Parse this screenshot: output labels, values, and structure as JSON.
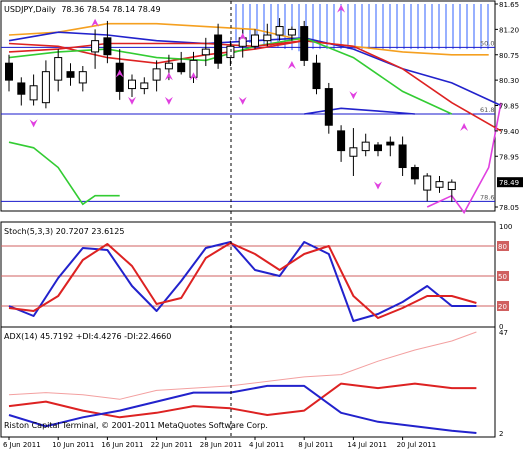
{
  "window": {
    "title": "USDJPY,Daily",
    "ohlc": "78.36 78.54 78.14 78.49",
    "copyright": "Riston Capital Terminal, © 2001-2011 MetaQuotes Software Corp."
  },
  "colors": {
    "background": "#ffffff",
    "panel_border": "#000000",
    "candle_up": "#ffffff",
    "candle_down": "#000000",
    "cloud_hatch": "#3060ff",
    "fibo": "#1a1acc",
    "arrows": "#e040e0",
    "separator": "#000000"
  },
  "chart_data": [
    {
      "type": "candlestick",
      "title": "USDJPY,Daily",
      "y_axis": {
        "min": 78.05,
        "max": 81.65,
        "ticks": [
          81.65,
          81.2,
          80.75,
          80.3,
          79.85,
          79.4,
          78.95,
          78.49,
          78.05
        ],
        "current_price": 78.49
      },
      "x_axis": {
        "tick_labels": [
          "6 Jun 2011",
          "10 Jun 2011",
          "16 Jun 2011",
          "22 Jun 2011",
          "28 Jun 2011",
          "4 Jul 2011",
          "8 Jul 2011",
          "14 Jul 2011",
          "20 Jul 2011"
        ],
        "tick_index": [
          0,
          4,
          8,
          12,
          16,
          20,
          24,
          28,
          32
        ]
      },
      "fibo_levels": [
        {
          "label": "50.0",
          "value": 80.88
        },
        {
          "label": "61.8",
          "value": 79.7
        },
        {
          "label": "78.6",
          "value": 78.15
        }
      ],
      "candles": [
        {
          "o": 80.6,
          "h": 80.75,
          "l": 80.1,
          "c": 80.3
        },
        {
          "o": 80.25,
          "h": 80.35,
          "l": 79.85,
          "c": 80.05
        },
        {
          "o": 79.95,
          "h": 80.4,
          "l": 79.85,
          "c": 80.2
        },
        {
          "o": 79.9,
          "h": 80.65,
          "l": 79.8,
          "c": 80.45
        },
        {
          "o": 80.3,
          "h": 80.85,
          "l": 80.1,
          "c": 80.7
        },
        {
          "o": 80.45,
          "h": 80.6,
          "l": 80.2,
          "c": 80.35
        },
        {
          "o": 80.25,
          "h": 80.55,
          "l": 80.1,
          "c": 80.45
        },
        {
          "o": 80.8,
          "h": 81.2,
          "l": 80.5,
          "c": 81.0
        },
        {
          "o": 81.05,
          "h": 81.35,
          "l": 80.6,
          "c": 80.75
        },
        {
          "o": 80.6,
          "h": 80.85,
          "l": 79.95,
          "c": 80.1
        },
        {
          "o": 80.15,
          "h": 80.4,
          "l": 80.0,
          "c": 80.3
        },
        {
          "o": 80.15,
          "h": 80.35,
          "l": 80.05,
          "c": 80.25
        },
        {
          "o": 80.3,
          "h": 80.65,
          "l": 80.1,
          "c": 80.5
        },
        {
          "o": 80.5,
          "h": 80.75,
          "l": 80.3,
          "c": 80.6
        },
        {
          "o": 80.6,
          "h": 80.8,
          "l": 80.4,
          "c": 80.45
        },
        {
          "o": 80.35,
          "h": 80.8,
          "l": 80.25,
          "c": 80.65
        },
        {
          "o": 80.75,
          "h": 81.05,
          "l": 80.55,
          "c": 80.85
        },
        {
          "o": 81.1,
          "h": 81.3,
          "l": 80.5,
          "c": 80.6
        },
        {
          "o": 80.7,
          "h": 81.0,
          "l": 80.55,
          "c": 80.9
        },
        {
          "o": 80.9,
          "h": 81.2,
          "l": 80.7,
          "c": 81.05
        },
        {
          "o": 80.9,
          "h": 81.2,
          "l": 80.85,
          "c": 81.1
        },
        {
          "o": 81.0,
          "h": 81.3,
          "l": 80.9,
          "c": 81.1
        },
        {
          "o": 81.1,
          "h": 81.4,
          "l": 81.0,
          "c": 81.25
        },
        {
          "o": 81.1,
          "h": 81.25,
          "l": 81.0,
          "c": 81.2
        },
        {
          "o": 81.25,
          "h": 81.35,
          "l": 80.55,
          "c": 80.65
        },
        {
          "o": 80.6,
          "h": 80.75,
          "l": 80.05,
          "c": 80.15
        },
        {
          "o": 80.15,
          "h": 80.25,
          "l": 79.35,
          "c": 79.5
        },
        {
          "o": 79.4,
          "h": 79.5,
          "l": 78.85,
          "c": 79.05
        },
        {
          "o": 78.95,
          "h": 79.45,
          "l": 78.6,
          "c": 79.1
        },
        {
          "o": 79.05,
          "h": 79.35,
          "l": 78.95,
          "c": 79.2
        },
        {
          "o": 79.15,
          "h": 79.2,
          "l": 78.95,
          "c": 79.05
        },
        {
          "o": 79.2,
          "h": 79.3,
          "l": 78.95,
          "c": 79.15
        },
        {
          "o": 79.15,
          "h": 79.3,
          "l": 78.6,
          "c": 78.75
        },
        {
          "o": 78.75,
          "h": 78.8,
          "l": 78.45,
          "c": 78.55
        },
        {
          "o": 78.35,
          "h": 78.65,
          "l": 78.15,
          "c": 78.6
        },
        {
          "o": 78.4,
          "h": 78.6,
          "l": 78.3,
          "c": 78.5
        },
        {
          "o": 78.36,
          "h": 78.54,
          "l": 78.14,
          "c": 78.49
        }
      ],
      "overlay_lines": [
        {
          "name": "orange",
          "color": "#f5a020",
          "x": [
            0,
            4,
            8,
            12,
            16,
            20,
            24,
            28,
            32,
            36,
            39
          ],
          "y": [
            81.1,
            81.15,
            81.3,
            81.3,
            81.25,
            81.2,
            81.0,
            80.9,
            80.8,
            80.75,
            80.75
          ]
        },
        {
          "name": "blue",
          "color": "#2222cc",
          "x": [
            0,
            4,
            8,
            12,
            16,
            20,
            24,
            28,
            32,
            36,
            40
          ],
          "y": [
            81.0,
            81.15,
            81.1,
            81.0,
            80.95,
            81.0,
            81.05,
            80.85,
            80.5,
            80.25,
            79.85
          ]
        },
        {
          "name": "red",
          "color": "#dd2222",
          "x": [
            0,
            4,
            8,
            12,
            16,
            20,
            24,
            28,
            32,
            36,
            40
          ],
          "y": [
            80.95,
            80.9,
            80.7,
            80.6,
            80.75,
            80.85,
            81.0,
            80.9,
            80.5,
            79.9,
            79.4
          ]
        },
        {
          "name": "green",
          "color": "#33cc33",
          "x": [
            0,
            4,
            8,
            12,
            16,
            20,
            24,
            28,
            32,
            36
          ],
          "y": [
            80.7,
            80.8,
            80.85,
            80.7,
            80.65,
            80.9,
            81.05,
            80.7,
            80.1,
            79.7
          ]
        },
        {
          "name": "green-lagging",
          "color": "#33cc33",
          "x": [
            0,
            2,
            4,
            6,
            7,
            9
          ],
          "y": [
            79.2,
            79.1,
            78.75,
            78.1,
            78.25,
            78.25
          ]
        },
        {
          "name": "red-cloud-edge",
          "color": "#dd2222",
          "x": [
            0,
            4,
            8,
            12,
            16,
            20,
            24
          ],
          "y": [
            80.8,
            80.85,
            80.95,
            80.95,
            80.95,
            80.9,
            81.0
          ]
        },
        {
          "name": "magenta",
          "color": "#e040e0",
          "x": [
            34,
            36,
            37,
            39,
            40
          ],
          "y": [
            78.05,
            78.25,
            77.95,
            78.75,
            79.9
          ]
        },
        {
          "name": "blue-lower",
          "color": "#2222cc",
          "x": [
            24,
            27,
            30,
            33
          ],
          "y": [
            79.7,
            79.8,
            79.75,
            79.7
          ]
        }
      ],
      "arrows": [
        {
          "dir": "up",
          "x": 7,
          "y": 81.3
        },
        {
          "dir": "up",
          "x": 27,
          "y": 81.55
        },
        {
          "dir": "up",
          "x": 37,
          "y": 79.45
        },
        {
          "dir": "down",
          "x": 10,
          "y": 79.95
        },
        {
          "dir": "down",
          "x": 13,
          "y": 79.95
        },
        {
          "dir": "down",
          "x": 19,
          "y": 79.95
        },
        {
          "dir": "down",
          "x": 28,
          "y": 80.05
        },
        {
          "dir": "down",
          "x": 30,
          "y": 78.45
        },
        {
          "dir": "down",
          "x": 2,
          "y": 79.55
        },
        {
          "dir": "up",
          "x": 23,
          "y": 80.55
        },
        {
          "dir": "up",
          "x": 15,
          "y": 80.35
        },
        {
          "dir": "up",
          "x": 13,
          "y": 80.35
        },
        {
          "dir": "up",
          "x": 9,
          "y": 80.4
        },
        {
          "dir": "up",
          "x": 19,
          "y": 81.05
        }
      ]
    },
    {
      "type": "line",
      "title": "Stoch(5,3,3) 20.7207 23.6125",
      "y_axis": {
        "min": 0,
        "max": 100,
        "ticks": [
          100,
          80,
          50,
          20,
          0
        ]
      },
      "levels": [
        80,
        50,
        20
      ],
      "series": [
        {
          "color": "#2222cc",
          "x": [
            0,
            2,
            4,
            6,
            8,
            10,
            12,
            14,
            16,
            18,
            20,
            22,
            24,
            26,
            28,
            30,
            32,
            34,
            36,
            38
          ],
          "y": [
            20,
            10,
            48,
            78,
            76,
            40,
            15,
            45,
            78,
            84,
            56,
            50,
            84,
            72,
            5,
            12,
            24,
            40,
            20,
            20
          ]
        },
        {
          "color": "#dd2222",
          "x": [
            0,
            2,
            4,
            6,
            8,
            10,
            12,
            14,
            16,
            18,
            20,
            22,
            24,
            26,
            28,
            30,
            32,
            34,
            36,
            38
          ],
          "y": [
            18,
            15,
            30,
            66,
            82,
            60,
            22,
            28,
            68,
            83,
            72,
            56,
            72,
            80,
            30,
            8,
            18,
            30,
            30,
            23
          ]
        }
      ]
    },
    {
      "type": "line",
      "title": "ADX(14) 45.7192 +DI:4.4276 -DI:22.4660",
      "y_axis": {
        "min": 2,
        "max": 47,
        "ticks": [
          47,
          2
        ]
      },
      "series": [
        {
          "color": "#f3a0a0",
          "x": [
            0,
            3,
            6,
            9,
            12,
            15,
            18,
            21,
            24,
            27,
            30,
            33,
            36,
            38
          ],
          "y": [
            19,
            20,
            19,
            17,
            21,
            22,
            23,
            25,
            27,
            28,
            34,
            39,
            43,
            47
          ]
        },
        {
          "color": "#dd2222",
          "x": [
            0,
            3,
            6,
            9,
            12,
            15,
            18,
            21,
            24,
            27,
            30,
            33,
            36,
            38
          ],
          "y": [
            14,
            16,
            12,
            9,
            11,
            14,
            13,
            10,
            12,
            24,
            22,
            24,
            22,
            22
          ]
        },
        {
          "color": "#2222cc",
          "x": [
            0,
            3,
            6,
            9,
            12,
            15,
            18,
            21,
            24,
            27,
            30,
            33,
            36,
            38
          ],
          "y": [
            10,
            5,
            9,
            12,
            16,
            20,
            20,
            23,
            23,
            11,
            7,
            5,
            3,
            2
          ]
        }
      ]
    }
  ]
}
